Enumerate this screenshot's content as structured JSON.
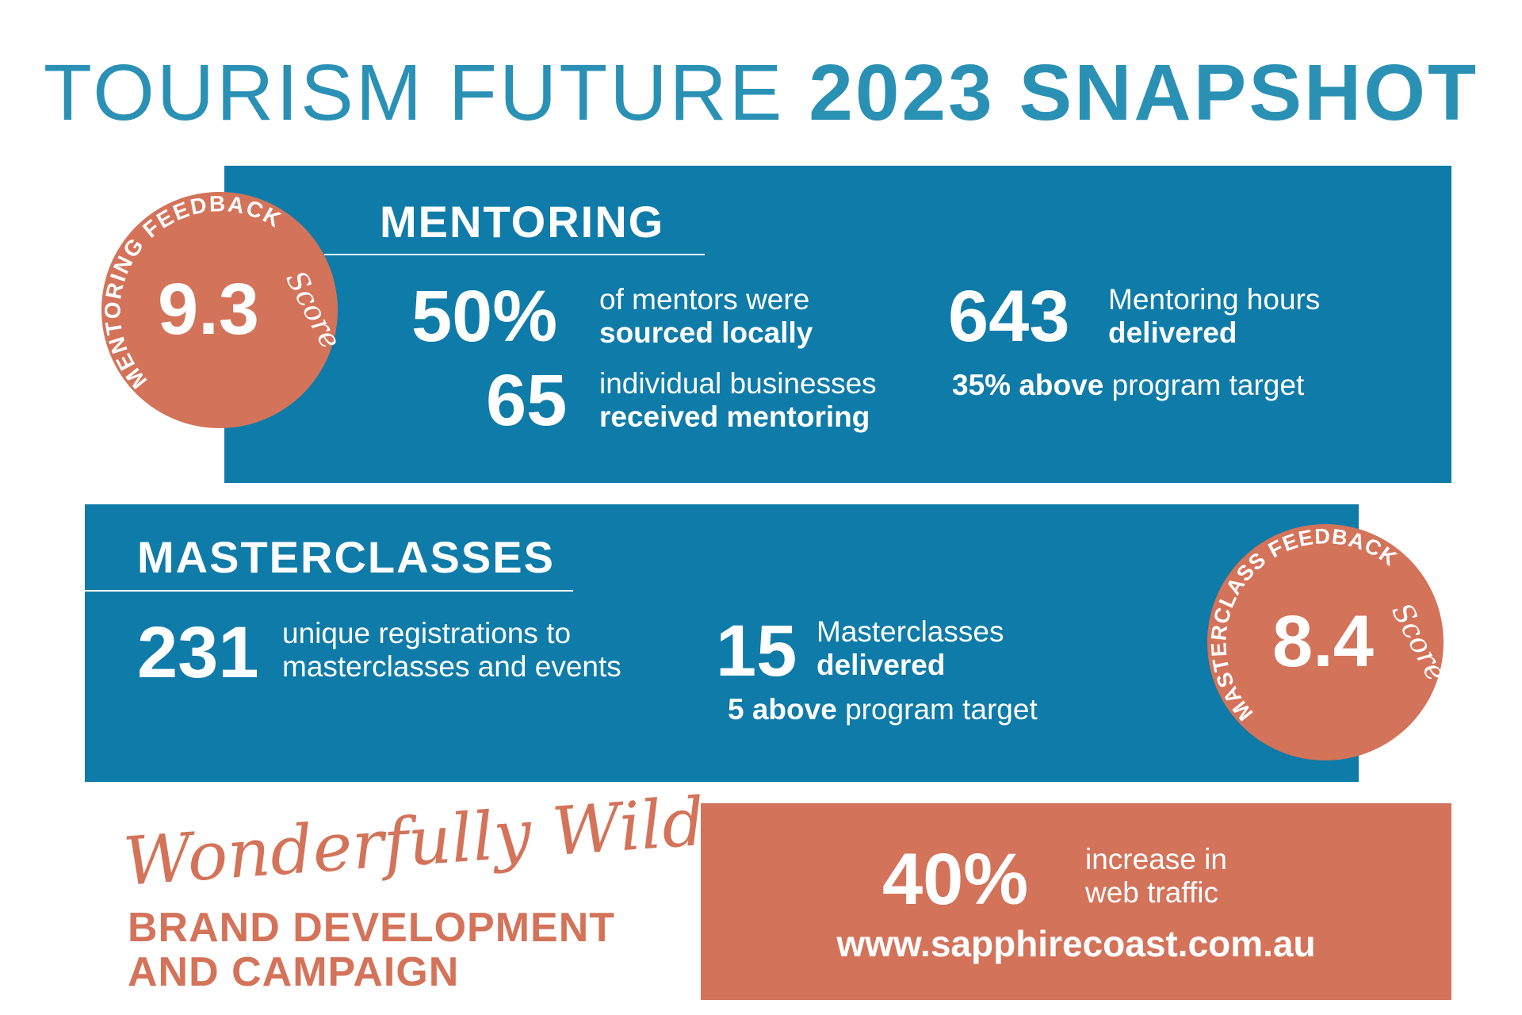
{
  "header": {
    "title_light": "TOURISM FUTURE",
    "title_bold": "2023 SNAPSHOT"
  },
  "colors": {
    "blue": "#0f7ba8",
    "coral": "#d3735a",
    "title_blue": "#2a91b5"
  },
  "mentoring": {
    "heading": "MENTORING",
    "badge": {
      "ring_text": "MENTORING FEEDBACK",
      "script_text": "Score",
      "score": "9.3"
    },
    "stats": [
      {
        "value": "50%",
        "line1": "of mentors were",
        "line2": "sourced locally"
      },
      {
        "value": "65",
        "line1": "individual businesses",
        "line2": "received mentoring"
      },
      {
        "value": "643",
        "line1": "Mentoring hours",
        "line2": "delivered",
        "note_bold": "35% above",
        "note": "program target"
      }
    ]
  },
  "masterclasses": {
    "heading": "MASTERCLASSES",
    "badge": {
      "ring_text": "MASTERCLASS FEEDBACK",
      "script_text": "Score",
      "score": "8.4"
    },
    "stats": [
      {
        "value": "231",
        "line1": "unique registrations to",
        "line2": "masterclasses and events"
      },
      {
        "value": "15",
        "line1": "Masterclasses",
        "line2": "delivered",
        "note_bold": "5 above",
        "note": "program target"
      }
    ]
  },
  "brand": {
    "script_title": "Wonderfully Wild",
    "line1": "BRAND DEVELOPMENT",
    "line2": "AND CAMPAIGN"
  },
  "web": {
    "value": "40%",
    "line1": "increase in",
    "line2": "web traffic",
    "url": "www.sapphirecoast.com.au"
  }
}
